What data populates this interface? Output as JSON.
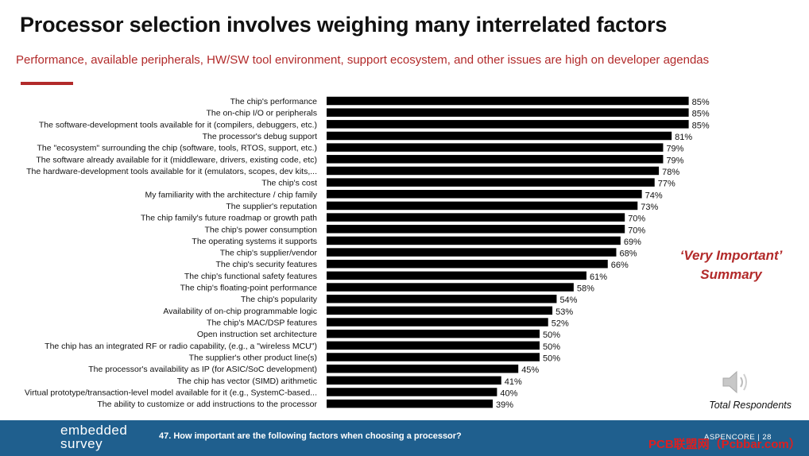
{
  "header": {
    "title": "Processor selection involves weighing many interrelated factors",
    "subtitle": "Performance, available peripherals, HW/SW tool environment, support ecosystem, and other issues are high on developer agendas"
  },
  "annotations": {
    "summary_line1": "‘Very Important’",
    "summary_line2": "Summary",
    "respondents": "Total Respondents"
  },
  "footer": {
    "logo_line1": "embedded",
    "logo_line2": "survey",
    "question": "47. How important are the following factors when choosing a processor?",
    "brand": "ASPENCORE | 28",
    "watermark": "PCB联盟网（Pcbbar.com）"
  },
  "colors": {
    "bar": "#000000",
    "accent": "#b22a2a",
    "footer": "#1f5f8e"
  },
  "icons": {
    "audio": "speaker-icon"
  },
  "chart_data": {
    "type": "bar",
    "orientation": "horizontal",
    "value_suffix": "%",
    "xlim": [
      0,
      100
    ],
    "grid": false,
    "categories": [
      "The chip's performance",
      "The on-chip I/O or peripherals",
      "The software-development tools available for it (compilers, debuggers, etc.)",
      "The processor's debug support",
      "The \"ecosystem\" surrounding the chip (software, tools, RTOS, support, etc.)",
      "The software already available for it (middleware, drivers, existing code, etc)",
      "The hardware-development tools available for it (emulators, scopes, dev kits,...",
      "The chip's cost",
      "My familiarity with the architecture / chip family",
      "The supplier's reputation",
      "The chip family's future roadmap or growth path",
      "The chip's power consumption",
      "The operating systems it supports",
      "The chip's supplier/vendor",
      "The chip's security features",
      "The chip's functional safety features",
      "The chip's floating-point performance",
      "The chip's popularity",
      "Availability of on-chip programmable logic",
      "The chip's MAC/DSP features",
      "Open instruction set architecture",
      "The chip has an integrated RF or radio capability, (e.g., a \"wireless MCU\")",
      "The supplier's other product line(s)",
      "The processor's availability as IP (for ASIC/SoC development)",
      "The chip has vector (SIMD) arithmetic",
      "Virtual prototype/transaction-level model available for it (e.g., SystemC-based...",
      "The ability to customize or add instructions to the processor"
    ],
    "values": [
      85,
      85,
      85,
      81,
      79,
      79,
      78,
      77,
      74,
      73,
      70,
      70,
      69,
      68,
      66,
      61,
      58,
      54,
      53,
      52,
      50,
      50,
      50,
      45,
      41,
      40,
      39
    ]
  }
}
